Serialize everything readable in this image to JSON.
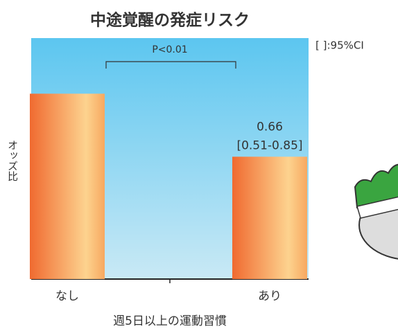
{
  "chart_data": {
    "type": "bar",
    "title": "中途覚醒の発症リスク",
    "y_label": "オッズ比",
    "x_label": "週5日以上の運動習慣",
    "categories": [
      "なし",
      "あり"
    ],
    "values": [
      1.0,
      0.66
    ],
    "ci_labels": [
      null,
      "[0.51-0.85]"
    ],
    "annotations": [
      "P<0.01",
      "[ ]:95%CI"
    ],
    "ylim": [
      0,
      1.3
    ],
    "colors": [
      "#f06a30",
      "#fdd38f"
    ]
  }
}
